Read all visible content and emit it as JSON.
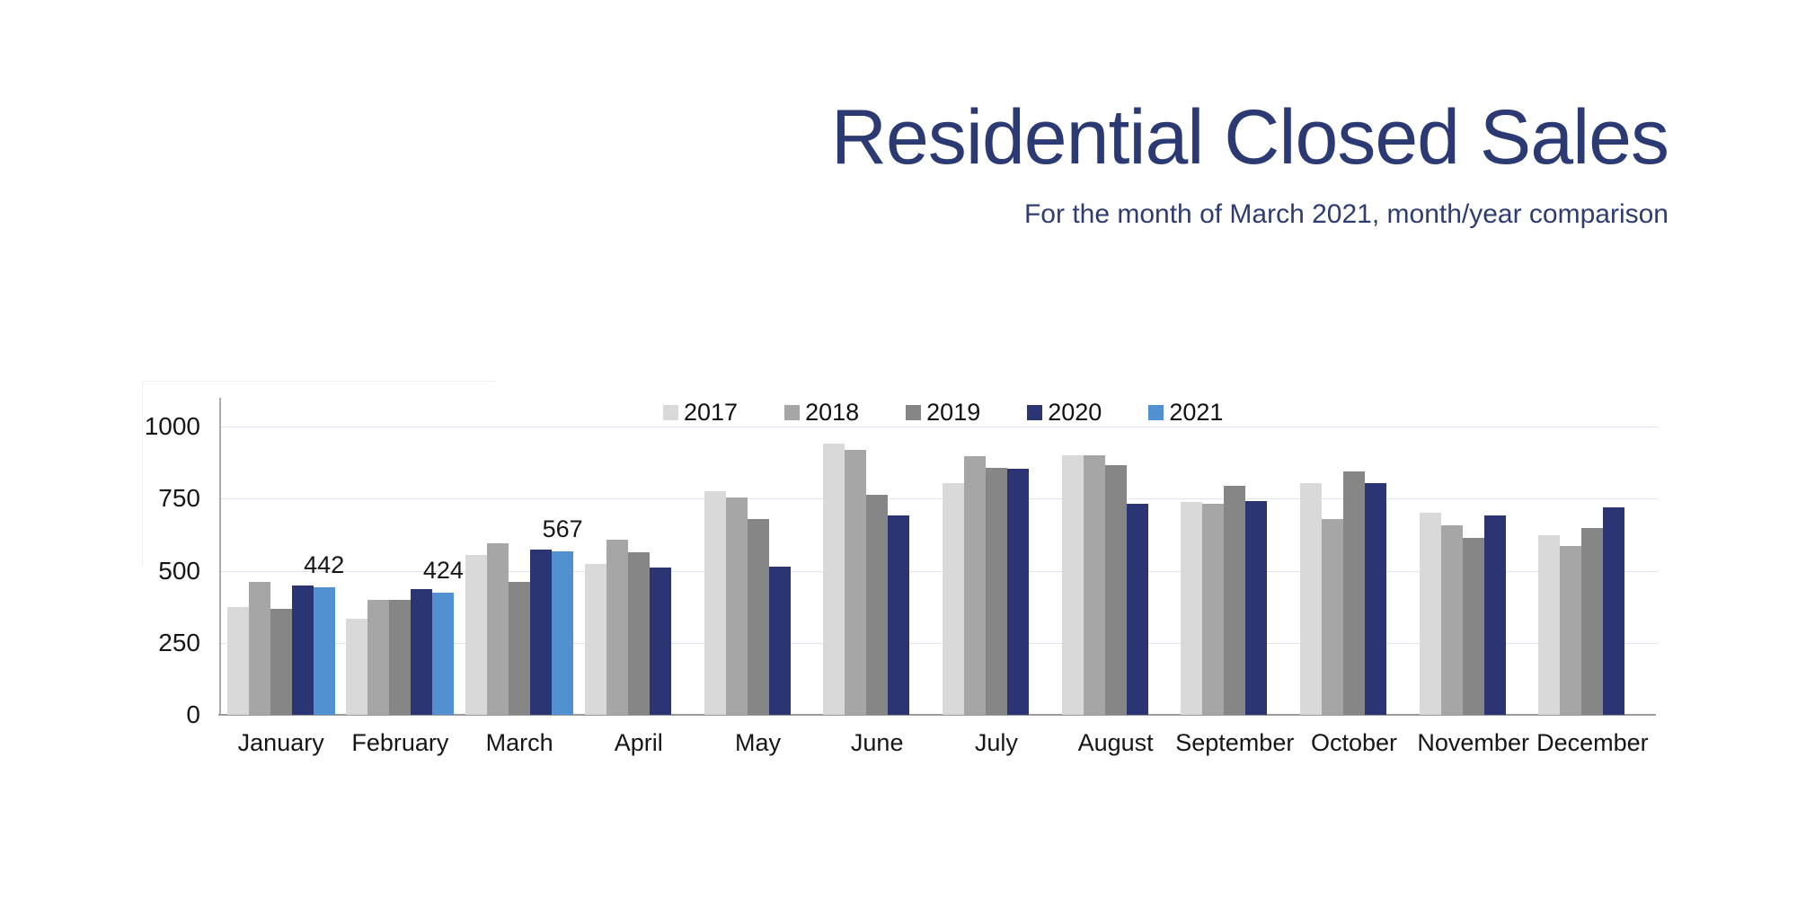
{
  "header": {
    "title": "Residential Closed Sales",
    "subtitle": "For the month of March 2021, month/year comparison"
  },
  "chart_data": {
    "type": "bar",
    "title": "Residential Closed Sales",
    "subtitle": "For the month of March 2021, month/year comparison",
    "categories": [
      "January",
      "February",
      "March",
      "April",
      "May",
      "June",
      "July",
      "August",
      "September",
      "October",
      "November",
      "December"
    ],
    "series": [
      {
        "name": "2017",
        "color": "#d9d9d9",
        "values": [
          375,
          335,
          555,
          525,
          775,
          940,
          805,
          900,
          740,
          805,
          700,
          625
        ]
      },
      {
        "name": "2018",
        "color": "#a6a6a6",
        "values": [
          460,
          400,
          597,
          607,
          753,
          920,
          898,
          900,
          734,
          680,
          658,
          585
        ]
      },
      {
        "name": "2019",
        "color": "#868686",
        "values": [
          368,
          400,
          460,
          565,
          680,
          765,
          858,
          867,
          795,
          845,
          615,
          650
        ]
      },
      {
        "name": "2020",
        "color": "#2b3573",
        "values": [
          450,
          436,
          574,
          512,
          514,
          691,
          855,
          733,
          743,
          805,
          691,
          720
        ]
      },
      {
        "name": "2021",
        "color": "#5191d1",
        "values": [
          442,
          424,
          567,
          null,
          null,
          null,
          null,
          null,
          null,
          null,
          null,
          null
        ]
      }
    ],
    "data_labels": [
      {
        "series": "2021",
        "category": "January",
        "value": "442"
      },
      {
        "series": "2021",
        "category": "February",
        "value": "424"
      },
      {
        "series": "2021",
        "category": "March",
        "value": "567"
      }
    ],
    "xlabel": "",
    "ylabel": "",
    "ylim": [
      0,
      1100
    ],
    "yticks": [
      "0",
      "250",
      "500",
      "750",
      "1000"
    ],
    "grid": "horizontal",
    "legend_position": "top-center"
  },
  "colors": {
    "title_text": "#2b3a73",
    "gridline": "#dee5f1",
    "axis_line": "#9a9a9a",
    "tick_text": "#161616",
    "background": "#ffffff"
  }
}
